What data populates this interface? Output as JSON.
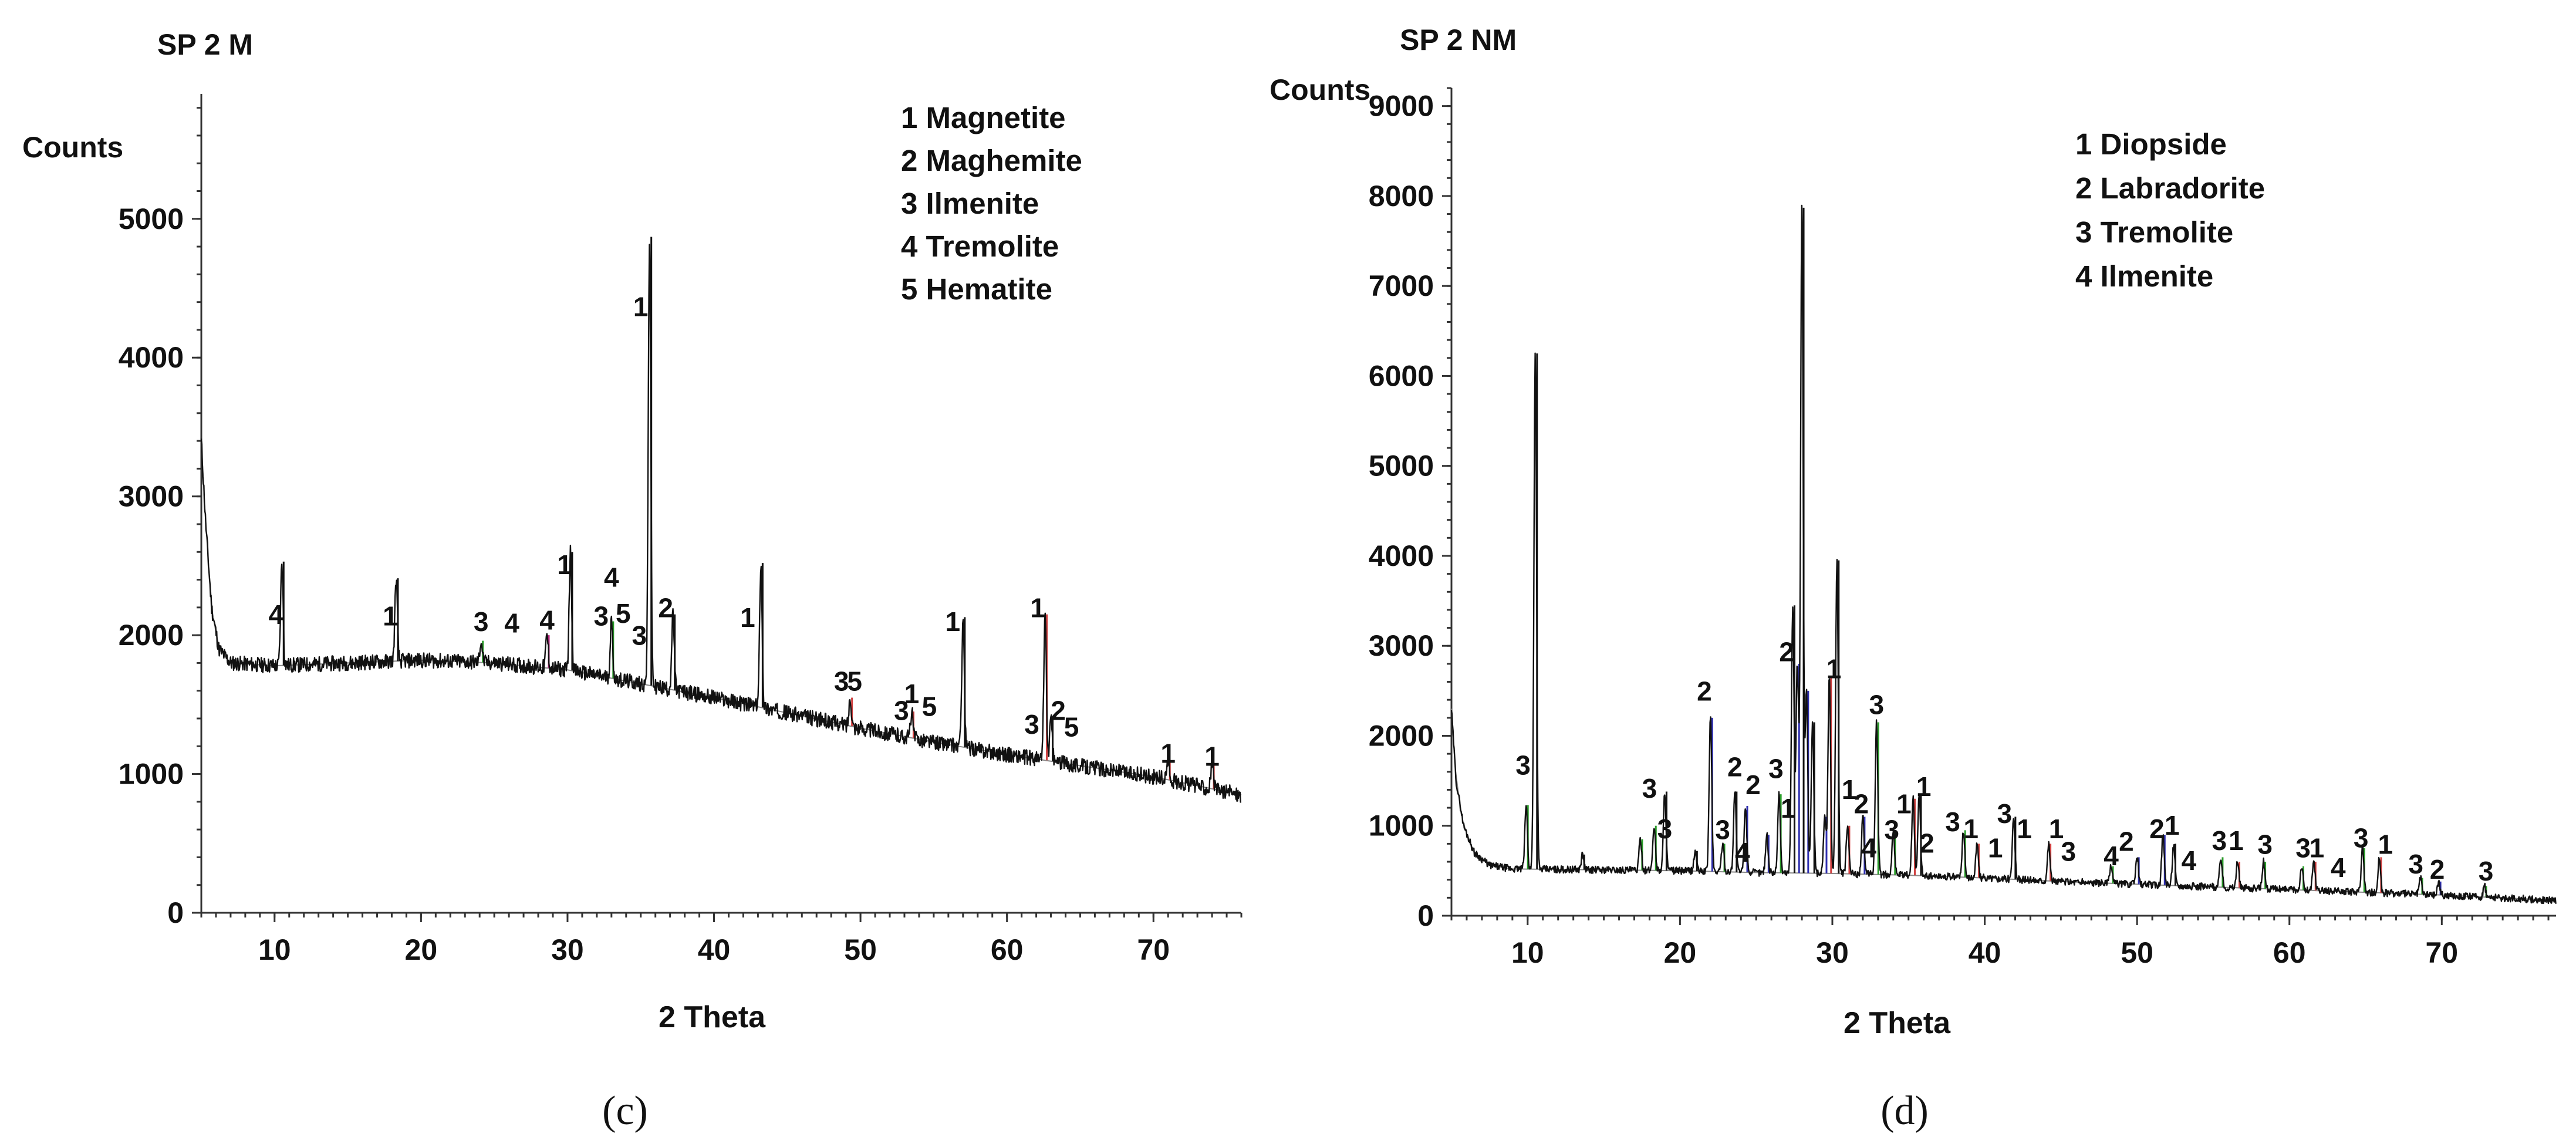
{
  "chart_data": [
    {
      "type": "line",
      "panel": "c",
      "title": "SP 2 M",
      "ylabel": "Counts",
      "xlabel": "2 Theta",
      "caption": "(c)",
      "xlim": [
        5,
        76
      ],
      "ylim": [
        0,
        5900
      ],
      "xticks": [
        10,
        20,
        30,
        40,
        50,
        60,
        70
      ],
      "yticks": [
        0,
        1000,
        2000,
        3000,
        4000,
        5000
      ],
      "legend": [
        "1 Magnetite",
        "2 Maghemite",
        "3 Ilmenite",
        "4 Tremolite",
        "5 Hematite"
      ],
      "background": [
        [
          5,
          3400
        ],
        [
          5.3,
          2800
        ],
        [
          5.7,
          2200
        ],
        [
          6.2,
          1900
        ],
        [
          7,
          1800
        ],
        [
          10,
          1780
        ],
        [
          15,
          1800
        ],
        [
          20,
          1820
        ],
        [
          25,
          1800
        ],
        [
          30,
          1750
        ],
        [
          35,
          1650
        ],
        [
          40,
          1550
        ],
        [
          45,
          1440
        ],
        [
          50,
          1330
        ],
        [
          55,
          1230
        ],
        [
          60,
          1140
        ],
        [
          65,
          1060
        ],
        [
          70,
          980
        ],
        [
          76,
          850
        ]
      ],
      "peaks": [
        {
          "x": 10.5,
          "y": 2530,
          "color": "#111111"
        },
        {
          "x": 18.3,
          "y": 2410,
          "color": "#111111"
        },
        {
          "x": 24.1,
          "y": 1960,
          "color": "#2a9d2a"
        },
        {
          "x": 28.6,
          "y": 2000,
          "color": "#b0207a"
        },
        {
          "x": 30.2,
          "y": 2600,
          "color": "#111111"
        },
        {
          "x": 33.0,
          "y": 2100,
          "color": "#2a9d2a"
        },
        {
          "x": 35.6,
          "y": 4870,
          "color": "#111111"
        },
        {
          "x": 37.2,
          "y": 2150,
          "color": "#111111"
        },
        {
          "x": 43.2,
          "y": 2520,
          "color": "#111111"
        },
        {
          "x": 49.3,
          "y": 1550,
          "color": "#d04040"
        },
        {
          "x": 53.5,
          "y": 1450,
          "color": "#d04040"
        },
        {
          "x": 57.0,
          "y": 2130,
          "color": "#111111"
        },
        {
          "x": 62.6,
          "y": 2150,
          "color": "#d04040"
        },
        {
          "x": 63.0,
          "y": 1400,
          "color": "#111111"
        },
        {
          "x": 71.0,
          "y": 1100,
          "color": "#d04040"
        },
        {
          "x": 74.0,
          "y": 1080,
          "color": "#d04040"
        }
      ],
      "annotations": [
        {
          "text": "4",
          "x": 10.1,
          "y": 2080
        },
        {
          "text": "1",
          "x": 17.9,
          "y": 2070
        },
        {
          "text": "3",
          "x": 24.1,
          "y": 2030
        },
        {
          "text": "4",
          "x": 26.2,
          "y": 2020
        },
        {
          "text": "4",
          "x": 28.6,
          "y": 2040
        },
        {
          "text": "1",
          "x": 29.8,
          "y": 2440
        },
        {
          "text": "4",
          "x": 33.0,
          "y": 2350
        },
        {
          "text": "3",
          "x": 32.3,
          "y": 2070
        },
        {
          "text": "5",
          "x": 33.8,
          "y": 2090
        },
        {
          "text": "3",
          "x": 34.9,
          "y": 1930
        },
        {
          "text": "2",
          "x": 36.7,
          "y": 2130
        },
        {
          "text": "1",
          "x": 35.0,
          "y": 4300
        },
        {
          "text": "1",
          "x": 42.3,
          "y": 2060
        },
        {
          "text": "3",
          "x": 48.7,
          "y": 1600
        },
        {
          "text": "5",
          "x": 49.6,
          "y": 1600
        },
        {
          "text": "1",
          "x": 53.5,
          "y": 1510
        },
        {
          "text": "3",
          "x": 52.8,
          "y": 1390
        },
        {
          "text": "5",
          "x": 54.7,
          "y": 1420
        },
        {
          "text": "1",
          "x": 56.3,
          "y": 2030
        },
        {
          "text": "1",
          "x": 62.1,
          "y": 2130
        },
        {
          "text": "3",
          "x": 61.7,
          "y": 1290
        },
        {
          "text": "2",
          "x": 63.5,
          "y": 1390
        },
        {
          "text": "5",
          "x": 64.4,
          "y": 1270
        },
        {
          "text": "1",
          "x": 71.0,
          "y": 1080
        },
        {
          "text": "1",
          "x": 74.0,
          "y": 1060
        }
      ]
    },
    {
      "type": "line",
      "panel": "d",
      "title": "SP 2 NM",
      "ylabel": "Counts",
      "xlabel": "2 Theta",
      "caption": "(d)",
      "xlim": [
        5,
        77.5
      ],
      "ylim": [
        0,
        9200
      ],
      "xticks": [
        10,
        20,
        30,
        40,
        50,
        60,
        70
      ],
      "yticks": [
        0,
        1000,
        2000,
        3000,
        4000,
        5000,
        6000,
        7000,
        8000,
        9000
      ],
      "legend": [
        "1 Diopside",
        "2 Labradorite",
        "3 Tremolite",
        "4 Ilmenite"
      ],
      "background": [
        [
          5,
          2300
        ],
        [
          5.3,
          1500
        ],
        [
          5.8,
          1000
        ],
        [
          6.5,
          700
        ],
        [
          7.5,
          560
        ],
        [
          9,
          520
        ],
        [
          15,
          510
        ],
        [
          20,
          500
        ],
        [
          25,
          480
        ],
        [
          30,
          470
        ],
        [
          35,
          450
        ],
        [
          40,
          420
        ],
        [
          45,
          380
        ],
        [
          50,
          350
        ],
        [
          55,
          320
        ],
        [
          60,
          290
        ],
        [
          65,
          260
        ],
        [
          70,
          230
        ],
        [
          77.5,
          170
        ]
      ],
      "peaks": [
        {
          "x": 9.9,
          "y": 1230,
          "color": "#2a9d2a"
        },
        {
          "x": 10.5,
          "y": 6250,
          "color": "#111111"
        },
        {
          "x": 13.6,
          "y": 680,
          "color": "#111111"
        },
        {
          "x": 17.4,
          "y": 850,
          "color": "#2a9d2a"
        },
        {
          "x": 18.3,
          "y": 1000,
          "color": "#2a9d2a"
        },
        {
          "x": 19.0,
          "y": 1380,
          "color": "#111111"
        },
        {
          "x": 21.0,
          "y": 720,
          "color": "#111111"
        },
        {
          "x": 22.0,
          "y": 2200,
          "color": "#2f2fb0"
        },
        {
          "x": 22.8,
          "y": 800,
          "color": "#2a9d2a"
        },
        {
          "x": 23.6,
          "y": 1380,
          "color": "#111111"
        },
        {
          "x": 24.3,
          "y": 1220,
          "color": "#2f2fb0"
        },
        {
          "x": 25.7,
          "y": 900,
          "color": "#2f2fb0"
        },
        {
          "x": 26.5,
          "y": 1350,
          "color": "#2a9d2a"
        },
        {
          "x": 27.4,
          "y": 3450,
          "color": "#111111"
        },
        {
          "x": 27.7,
          "y": 2800,
          "color": "#2f2fb0"
        },
        {
          "x": 28.0,
          "y": 7870,
          "color": "#111111"
        },
        {
          "x": 28.3,
          "y": 2500,
          "color": "#2f2fb0"
        },
        {
          "x": 28.7,
          "y": 2150,
          "color": "#111111"
        },
        {
          "x": 29.5,
          "y": 1100,
          "color": "#2f2fb0"
        },
        {
          "x": 29.8,
          "y": 2650,
          "color": "#d04040"
        },
        {
          "x": 30.3,
          "y": 3950,
          "color": "#111111"
        },
        {
          "x": 31.0,
          "y": 1000,
          "color": "#d04040"
        },
        {
          "x": 32.0,
          "y": 1100,
          "color": "#2f2fb0"
        },
        {
          "x": 32.9,
          "y": 2150,
          "color": "#2a9d2a"
        },
        {
          "x": 34.0,
          "y": 950,
          "color": "#2a9d2a"
        },
        {
          "x": 35.3,
          "y": 1300,
          "color": "#d04040"
        },
        {
          "x": 35.7,
          "y": 1350,
          "color": "#111111"
        },
        {
          "x": 38.6,
          "y": 950,
          "color": "#2a9d2a"
        },
        {
          "x": 39.5,
          "y": 800,
          "color": "#d04040"
        },
        {
          "x": 41.9,
          "y": 1100,
          "color": "#111111"
        },
        {
          "x": 44.2,
          "y": 800,
          "color": "#d04040"
        },
        {
          "x": 48.3,
          "y": 550,
          "color": "#2a9d2a"
        },
        {
          "x": 50.0,
          "y": 650,
          "color": "#2f2fb0"
        },
        {
          "x": 51.7,
          "y": 900,
          "color": "#2f2fb0"
        },
        {
          "x": 52.4,
          "y": 800,
          "color": "#111111"
        },
        {
          "x": 55.5,
          "y": 650,
          "color": "#2a9d2a"
        },
        {
          "x": 56.6,
          "y": 600,
          "color": "#d04040"
        },
        {
          "x": 58.3,
          "y": 600,
          "color": "#2a9d2a"
        },
        {
          "x": 60.8,
          "y": 550,
          "color": "#2a9d2a"
        },
        {
          "x": 61.6,
          "y": 600,
          "color": "#d04040"
        },
        {
          "x": 64.8,
          "y": 750,
          "color": "#2a9d2a"
        },
        {
          "x": 65.9,
          "y": 650,
          "color": "#d04040"
        },
        {
          "x": 68.6,
          "y": 420,
          "color": "#2a9d2a"
        },
        {
          "x": 69.8,
          "y": 380,
          "color": "#2f2fb0"
        },
        {
          "x": 72.8,
          "y": 330,
          "color": "#2a9d2a"
        }
      ],
      "annotations": [
        {
          "text": "3",
          "x": 9.7,
          "y": 1570
        },
        {
          "text": "3",
          "x": 18.0,
          "y": 1310
        },
        {
          "text": "3",
          "x": 19.0,
          "y": 860
        },
        {
          "text": "2",
          "x": 21.6,
          "y": 2390
        },
        {
          "text": "3",
          "x": 22.8,
          "y": 850
        },
        {
          "text": "2",
          "x": 23.6,
          "y": 1550
        },
        {
          "text": "4",
          "x": 24.1,
          "y": 600
        },
        {
          "text": "2",
          "x": 24.8,
          "y": 1350
        },
        {
          "text": "3",
          "x": 26.3,
          "y": 1530
        },
        {
          "text": "1",
          "x": 27.1,
          "y": 1090
        },
        {
          "text": "2",
          "x": 27.0,
          "y": 2830
        },
        {
          "text": "1",
          "x": 30.1,
          "y": 2640
        },
        {
          "text": "3",
          "x": 32.9,
          "y": 2240
        },
        {
          "text": "1",
          "x": 31.1,
          "y": 1300
        },
        {
          "text": "2",
          "x": 31.9,
          "y": 1140
        },
        {
          "text": "4",
          "x": 32.4,
          "y": 650
        },
        {
          "text": "3",
          "x": 33.9,
          "y": 850
        },
        {
          "text": "1",
          "x": 34.7,
          "y": 1140
        },
        {
          "text": "1",
          "x": 36.0,
          "y": 1330
        },
        {
          "text": "2",
          "x": 36.2,
          "y": 700
        },
        {
          "text": "3",
          "x": 37.9,
          "y": 940
        },
        {
          "text": "1",
          "x": 39.1,
          "y": 860
        },
        {
          "text": "3",
          "x": 41.3,
          "y": 1030
        },
        {
          "text": "1",
          "x": 40.7,
          "y": 650
        },
        {
          "text": "1",
          "x": 42.6,
          "y": 860
        },
        {
          "text": "1",
          "x": 44.7,
          "y": 860
        },
        {
          "text": "3",
          "x": 45.5,
          "y": 610
        },
        {
          "text": "4",
          "x": 48.3,
          "y": 560
        },
        {
          "text": "2",
          "x": 49.3,
          "y": 720
        },
        {
          "text": "2",
          "x": 51.3,
          "y": 860
        },
        {
          "text": "1",
          "x": 52.3,
          "y": 900
        },
        {
          "text": "4",
          "x": 53.4,
          "y": 510
        },
        {
          "text": "3",
          "x": 55.4,
          "y": 730
        },
        {
          "text": "1",
          "x": 56.5,
          "y": 730
        },
        {
          "text": "3",
          "x": 58.4,
          "y": 690
        },
        {
          "text": "3",
          "x": 60.9,
          "y": 650
        },
        {
          "text": "1",
          "x": 61.8,
          "y": 650
        },
        {
          "text": "4",
          "x": 63.2,
          "y": 430
        },
        {
          "text": "3",
          "x": 64.7,
          "y": 760
        },
        {
          "text": "1",
          "x": 66.3,
          "y": 690
        },
        {
          "text": "3",
          "x": 68.3,
          "y": 470
        },
        {
          "text": "2",
          "x": 69.7,
          "y": 410
        },
        {
          "text": "3",
          "x": 72.9,
          "y": 390
        }
      ]
    }
  ]
}
